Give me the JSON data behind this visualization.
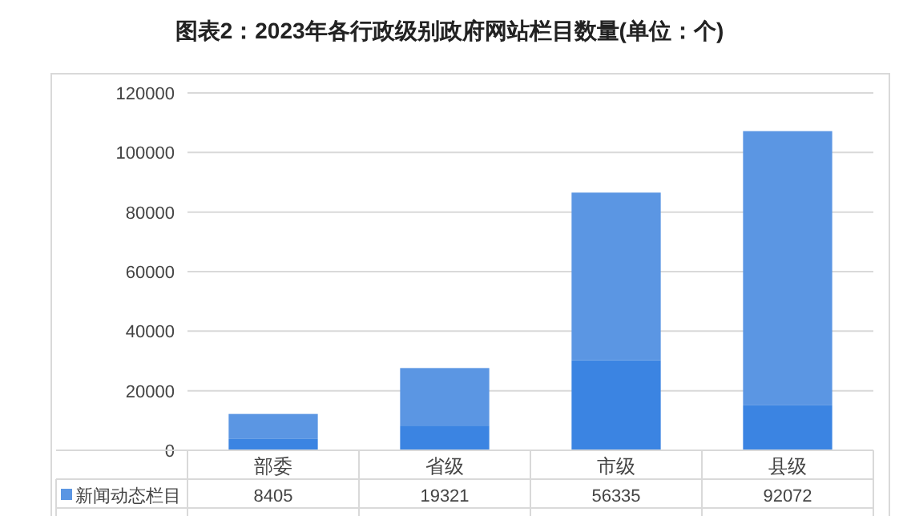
{
  "chart_data": {
    "type": "bar",
    "stacked": true,
    "title": "图表2：2023年各行政级别政府网站栏目数量(单位：个)",
    "categories": [
      "部委",
      "省级",
      "市级",
      "县级"
    ],
    "series": [
      {
        "color": "#3b84e2",
        "values": [
          3800,
          8300,
          30200,
          15100
        ]
      },
      {
        "name": "新闻动态栏目",
        "color": "#5b96e3",
        "values": [
          8405,
          19321,
          56335,
          92072
        ],
        "value_labels": [
          "8405",
          "19321",
          "56335",
          "92072"
        ]
      }
    ],
    "ylim": [
      0,
      120000
    ],
    "yticks": [
      0,
      20000,
      40000,
      60000,
      80000,
      100000,
      120000
    ],
    "grid": "y",
    "legend": "bottom"
  }
}
